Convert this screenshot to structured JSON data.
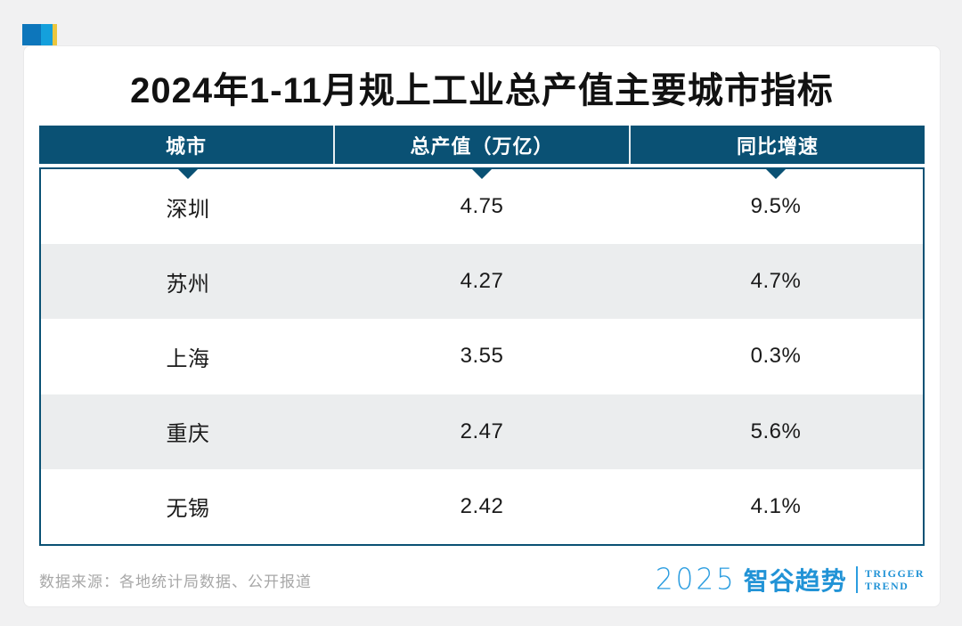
{
  "title": "2024年1-11月规上工业总产值主要城市指标",
  "badge": {
    "colors": [
      "#0d76bb",
      "#14a0dc",
      "#ecc63d"
    ]
  },
  "table": {
    "headers": [
      "城市",
      "总产值（万亿）",
      "同比增速"
    ],
    "rows": [
      {
        "city": "深圳",
        "value": "4.75",
        "growth": "9.5%"
      },
      {
        "city": "苏州",
        "value": "4.27",
        "growth": "4.7%"
      },
      {
        "city": "上海",
        "value": "3.55",
        "growth": "0.3%"
      },
      {
        "city": "重庆",
        "value": "2.47",
        "growth": "5.6%"
      },
      {
        "city": "无锡",
        "value": "2.42",
        "growth": "4.1%"
      }
    ],
    "header_bg": "#0a5174",
    "alt_row_bg": "#ebedee"
  },
  "footer": {
    "source": "数据来源：各地统计局数据、公开报道"
  },
  "logo": {
    "year": "2025",
    "brand": "智谷趋势",
    "tagline_line1": "TRIGGER",
    "tagline_line2": "TREND",
    "color": "#2b9de0"
  },
  "chart_data": {
    "type": "table",
    "title": "2024年1-11月规上工业总产值主要城市指标",
    "columns": [
      "城市",
      "总产值（万亿）",
      "同比增速"
    ],
    "categories": [
      "深圳",
      "苏州",
      "上海",
      "重庆",
      "无锡"
    ],
    "series": [
      {
        "name": "总产值（万亿）",
        "values": [
          4.75,
          4.27,
          3.55,
          2.47,
          2.42
        ]
      },
      {
        "name": "同比增速(%)",
        "values": [
          9.5,
          4.7,
          0.3,
          5.6,
          4.1
        ]
      }
    ],
    "source_note": "数据来源：各地统计局数据、公开报道"
  }
}
